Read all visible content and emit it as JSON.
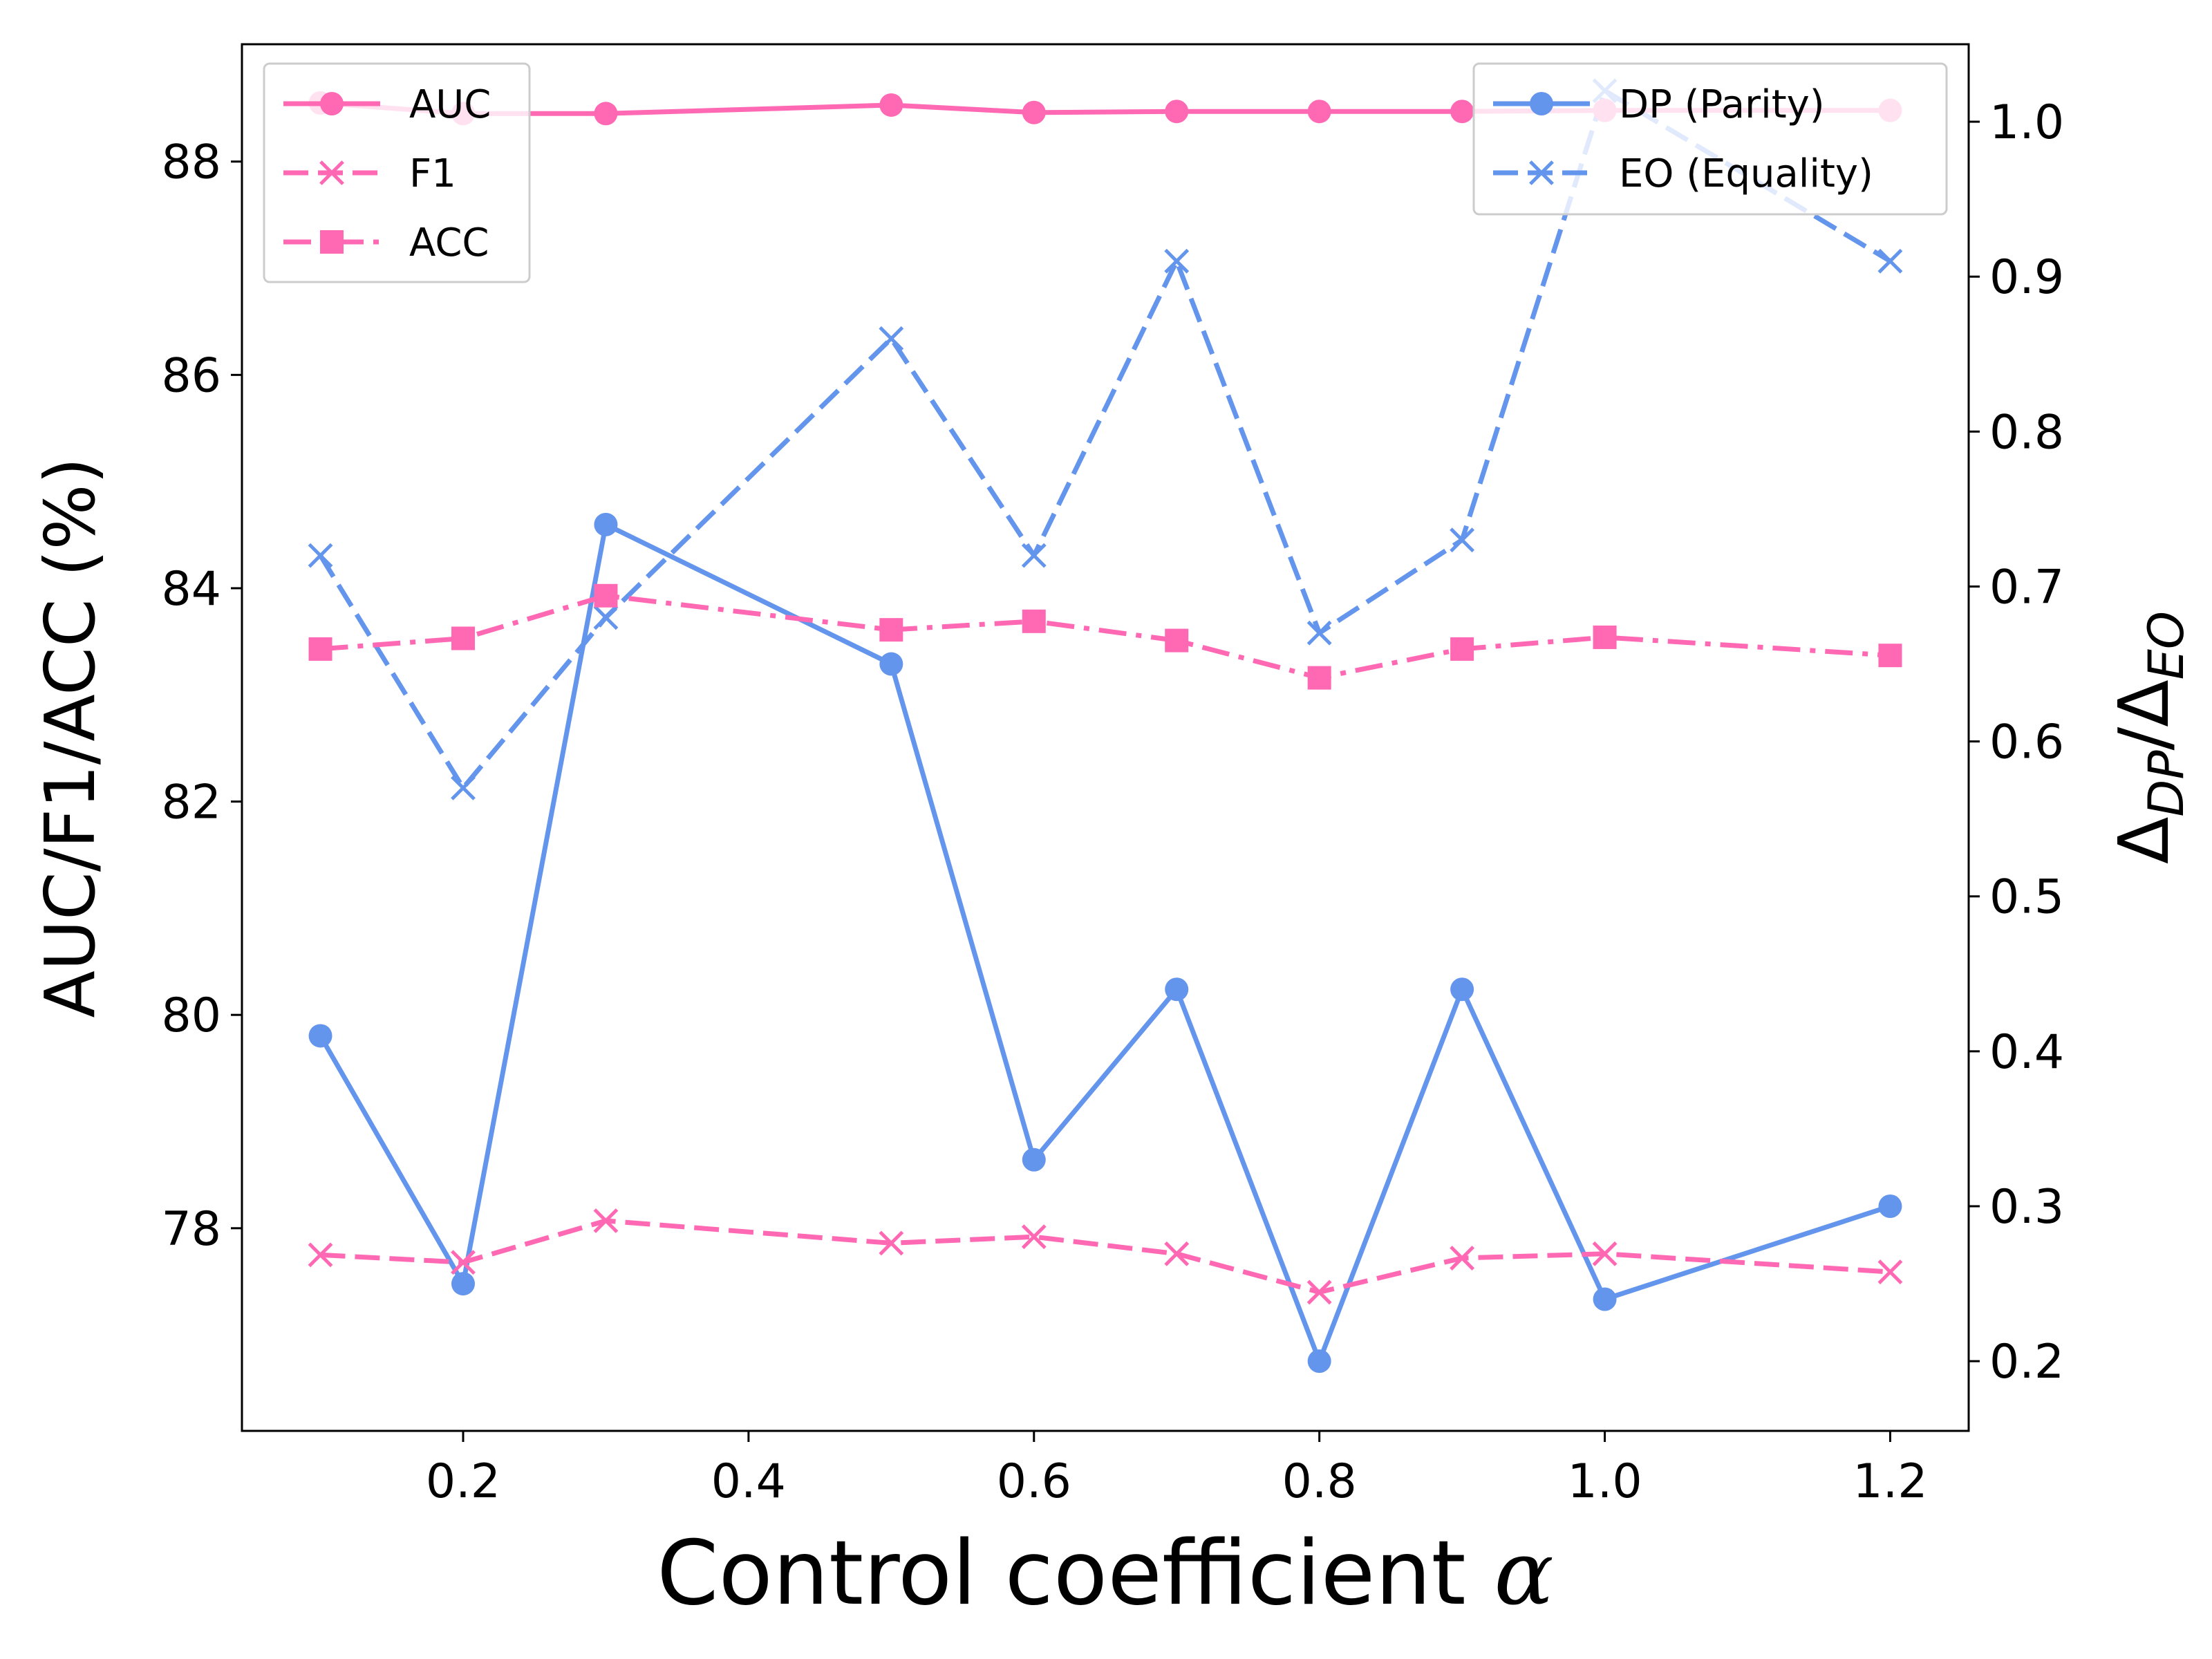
{
  "chart_data": {
    "type": "line",
    "x": [
      0.1,
      0.2,
      0.3,
      0.5,
      0.6,
      0.7,
      0.8,
      0.9,
      1.0,
      1.2
    ],
    "xlabel": "Control coefficient α",
    "ylabel_left": "AUC/F1/ACC (%)",
    "ylabel_right": "Δ_DP/Δ_EO",
    "xlim": [
      0.045,
      1.255
    ],
    "ylim_left": [
      76.1,
      89.1
    ],
    "ylim_right": [
      0.155,
      1.05
    ],
    "xticks": [
      "0.2",
      "0.4",
      "0.6",
      "0.8",
      "1.0",
      "1.2"
    ],
    "yticks_left": [
      "78",
      "80",
      "82",
      "84",
      "86",
      "88"
    ],
    "yticks_right": [
      "0.2",
      "0.3",
      "0.4",
      "0.5",
      "0.6",
      "0.7",
      "0.8",
      "0.9",
      "1.0"
    ],
    "grid": false,
    "series_left": [
      {
        "name": "AUC",
        "values": [
          88.55,
          88.45,
          88.45,
          88.53,
          88.46,
          88.47,
          88.47,
          88.47,
          88.48,
          88.48
        ],
        "color": "#ff69b4",
        "dash": "solid",
        "marker": "circle"
      },
      {
        "name": "F1",
        "values": [
          77.75,
          77.68,
          78.07,
          77.86,
          77.92,
          77.76,
          77.4,
          77.72,
          77.76,
          77.59
        ],
        "color": "#ff69b4",
        "dash": "dashed",
        "marker": "x"
      },
      {
        "name": "ACC",
        "values": [
          83.43,
          83.53,
          83.93,
          83.61,
          83.69,
          83.51,
          83.16,
          83.43,
          83.54,
          83.37
        ],
        "color": "#ff69b4",
        "dash": "dashdot",
        "marker": "square"
      }
    ],
    "series_right": [
      {
        "name": "DP (Parity)",
        "values": [
          0.41,
          0.25,
          0.74,
          0.65,
          0.33,
          0.44,
          0.2,
          0.44,
          0.24,
          0.3
        ],
        "color": "#6495ed",
        "dash": "solid",
        "marker": "circle"
      },
      {
        "name": "EO (Equality)",
        "values": [
          0.72,
          0.57,
          0.68,
          0.86,
          0.72,
          0.91,
          0.67,
          0.73,
          1.02,
          0.91
        ],
        "color": "#6495ed",
        "dash": "dashed",
        "marker": "x"
      }
    ],
    "legend_left_placement": "top-left",
    "legend_right_placement": "top-right"
  }
}
